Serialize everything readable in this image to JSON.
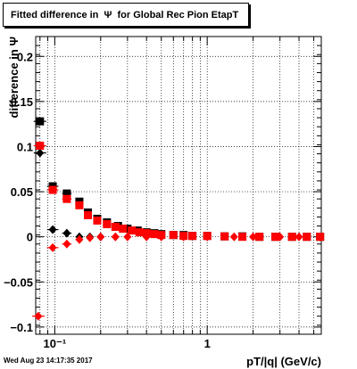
{
  "page": {
    "title": "Fitted difference in  Ψ  for Global Rec Pion EtapT",
    "timestamp": "Wed Aug 23 14:17:35 2017"
  },
  "chart_data": {
    "type": "scatter",
    "title": "Fitted difference in  Ψ  for Global Rec Pion EtapT",
    "xlabel": "pT/|q| (GeV/c)",
    "ylabel": "difference in  Ψ",
    "xscale": "log",
    "xlim": [
      0.075,
      5.6
    ],
    "ylim": [
      -0.108,
      0.222
    ],
    "yticks": [
      -0.1,
      -0.05,
      0,
      0.05,
      0.1,
      0.15,
      0.2
    ],
    "ytick_labels": [
      "−0.1",
      "−0.05",
      "0",
      "0.05",
      "0.1",
      "0.15",
      "0.2"
    ],
    "xtick_labels": [
      {
        "value": 0.1,
        "label": "10⁻¹"
      },
      {
        "value": 1,
        "label": "1"
      }
    ],
    "grid": true,
    "series": [
      {
        "marker": "square",
        "color": "#000000",
        "points": [
          {
            "x": 0.08,
            "y": 0.128
          },
          {
            "x": 0.097,
            "y": 0.056
          },
          {
            "x": 0.12,
            "y": 0.048
          },
          {
            "x": 0.145,
            "y": 0.039
          },
          {
            "x": 0.165,
            "y": 0.027
          },
          {
            "x": 0.19,
            "y": 0.02
          },
          {
            "x": 0.22,
            "y": 0.016
          },
          {
            "x": 0.26,
            "y": 0.012
          },
          {
            "x": 0.3,
            "y": 0.009
          },
          {
            "x": 0.35,
            "y": 0.007
          },
          {
            "x": 0.4,
            "y": 0.005
          },
          {
            "x": 0.45,
            "y": 0.004
          },
          {
            "x": 0.5,
            "y": 0.003
          },
          {
            "x": 0.6,
            "y": 0.002
          },
          {
            "x": 0.7,
            "y": 0.002
          },
          {
            "x": 0.8,
            "y": 0.001
          },
          {
            "x": 1.0,
            "y": 0.001
          },
          {
            "x": 1.3,
            "y": 0.0005
          },
          {
            "x": 1.7,
            "y": 0.0005
          },
          {
            "x": 2.2,
            "y": 0.0
          },
          {
            "x": 2.8,
            "y": 0.0
          },
          {
            "x": 3.6,
            "y": 0.0
          },
          {
            "x": 4.5,
            "y": 0.0
          },
          {
            "x": 5.5,
            "y": 0.0
          }
        ]
      },
      {
        "marker": "diamond",
        "color": "#000000",
        "points": [
          {
            "x": 0.08,
            "y": 0.093
          },
          {
            "x": 0.097,
            "y": 0.008
          },
          {
            "x": 0.12,
            "y": 0.004
          },
          {
            "x": 0.145,
            "y": 0.0
          },
          {
            "x": 0.17,
            "y": 0.0
          },
          {
            "x": 0.2,
            "y": 0.0
          }
        ]
      },
      {
        "marker": "square",
        "color": "#ff0000",
        "points": [
          {
            "x": 0.08,
            "y": 0.101
          },
          {
            "x": 0.097,
            "y": 0.052
          },
          {
            "x": 0.12,
            "y": 0.042
          },
          {
            "x": 0.145,
            "y": 0.035
          },
          {
            "x": 0.165,
            "y": 0.024
          },
          {
            "x": 0.19,
            "y": 0.018
          },
          {
            "x": 0.22,
            "y": 0.014
          },
          {
            "x": 0.25,
            "y": 0.011
          },
          {
            "x": 0.28,
            "y": 0.009
          },
          {
            "x": 0.32,
            "y": 0.007
          },
          {
            "x": 0.36,
            "y": 0.005
          },
          {
            "x": 0.4,
            "y": 0.004
          },
          {
            "x": 0.45,
            "y": 0.003
          },
          {
            "x": 0.5,
            "y": 0.002
          },
          {
            "x": 0.6,
            "y": 0.002
          },
          {
            "x": 0.7,
            "y": 0.001
          },
          {
            "x": 0.8,
            "y": 0.001
          },
          {
            "x": 1.0,
            "y": 0.001
          },
          {
            "x": 1.3,
            "y": 0.0005
          },
          {
            "x": 1.7,
            "y": 0.0
          },
          {
            "x": 2.2,
            "y": 0.0
          },
          {
            "x": 2.8,
            "y": 0.0
          },
          {
            "x": 3.6,
            "y": 0.0
          },
          {
            "x": 4.5,
            "y": 0.0
          },
          {
            "x": 5.5,
            "y": 0.0
          }
        ]
      },
      {
        "marker": "diamond",
        "color": "#ff0000",
        "points": [
          {
            "x": 0.078,
            "y": -0.088
          },
          {
            "x": 0.097,
            "y": -0.012
          },
          {
            "x": 0.12,
            "y": -0.008
          },
          {
            "x": 0.145,
            "y": -0.003
          },
          {
            "x": 0.17,
            "y": -0.001
          },
          {
            "x": 0.2,
            "y": 0.0
          },
          {
            "x": 0.25,
            "y": 0.0
          },
          {
            "x": 0.3,
            "y": 0.0
          },
          {
            "x": 0.4,
            "y": 0.0
          },
          {
            "x": 0.5,
            "y": 0.0
          },
          {
            "x": 0.7,
            "y": 0.0
          },
          {
            "x": 1.0,
            "y": 0.0
          },
          {
            "x": 1.5,
            "y": 0.0
          },
          {
            "x": 2.0,
            "y": 0.0
          },
          {
            "x": 3.0,
            "y": 0.0
          },
          {
            "x": 4.0,
            "y": 0.0
          },
          {
            "x": 5.5,
            "y": 0.0
          }
        ]
      }
    ]
  }
}
